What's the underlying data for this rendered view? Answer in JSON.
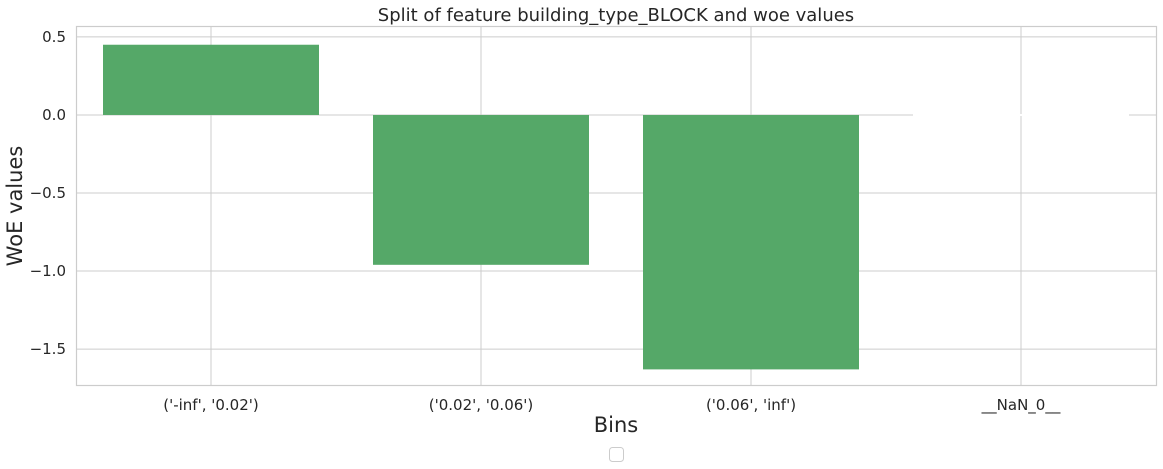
{
  "chart_data": {
    "type": "bar",
    "title": "Split of feature building_type_BLOCK and woe values",
    "xlabel": "Bins",
    "ylabel": "WoE values",
    "categories": [
      "('-inf', '0.02')",
      "('0.02', '0.06')",
      "('0.06', 'inf')",
      "__NaN_0__"
    ],
    "values": [
      0.45,
      -0.96,
      -1.63,
      0.0
    ],
    "ylim": [
      -1.73,
      0.57
    ],
    "yticks": [
      0.5,
      0.0,
      -0.5,
      -1.0,
      -1.5
    ],
    "ytick_labels": [
      "0.5",
      "0.0",
      "−0.5",
      "−1.0",
      "−1.5"
    ],
    "grid": true,
    "legend": "bottom-center, empty",
    "colors": {
      "bar": "#55a868",
      "grid": "#cccccc",
      "text": "#262626",
      "background": "#ffffff"
    }
  }
}
